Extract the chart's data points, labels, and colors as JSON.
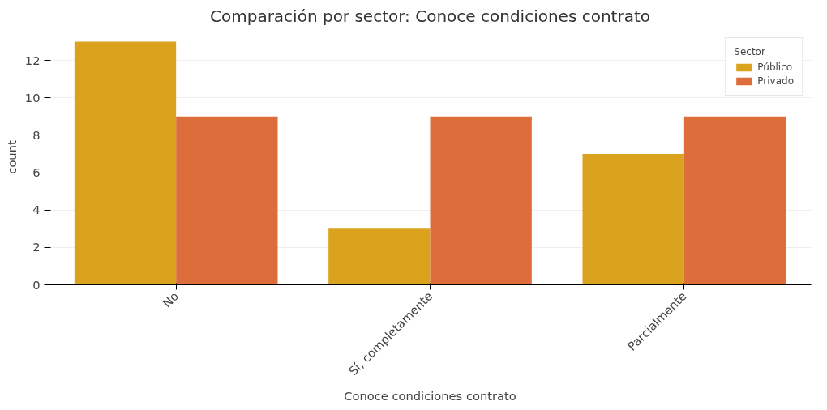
{
  "chart_data": {
    "type": "bar",
    "title": "Comparación por sector: Conoce condiciones contrato",
    "xlabel": "Conoce condiciones contrato",
    "ylabel": "count",
    "legend_title": "Sector",
    "categories": [
      "No",
      "Sí, completamente",
      "Parcialmente"
    ],
    "series": [
      {
        "name": "Público",
        "color": "#dba21e",
        "values": [
          13,
          3,
          7
        ]
      },
      {
        "name": "Privado",
        "color": "#dd6d3a",
        "values": [
          9,
          9,
          9
        ]
      }
    ],
    "ylim": [
      0,
      13.65
    ],
    "yticks": [
      0,
      2,
      4,
      6,
      8,
      10,
      12
    ],
    "grid": "y",
    "legend": "top right"
  }
}
